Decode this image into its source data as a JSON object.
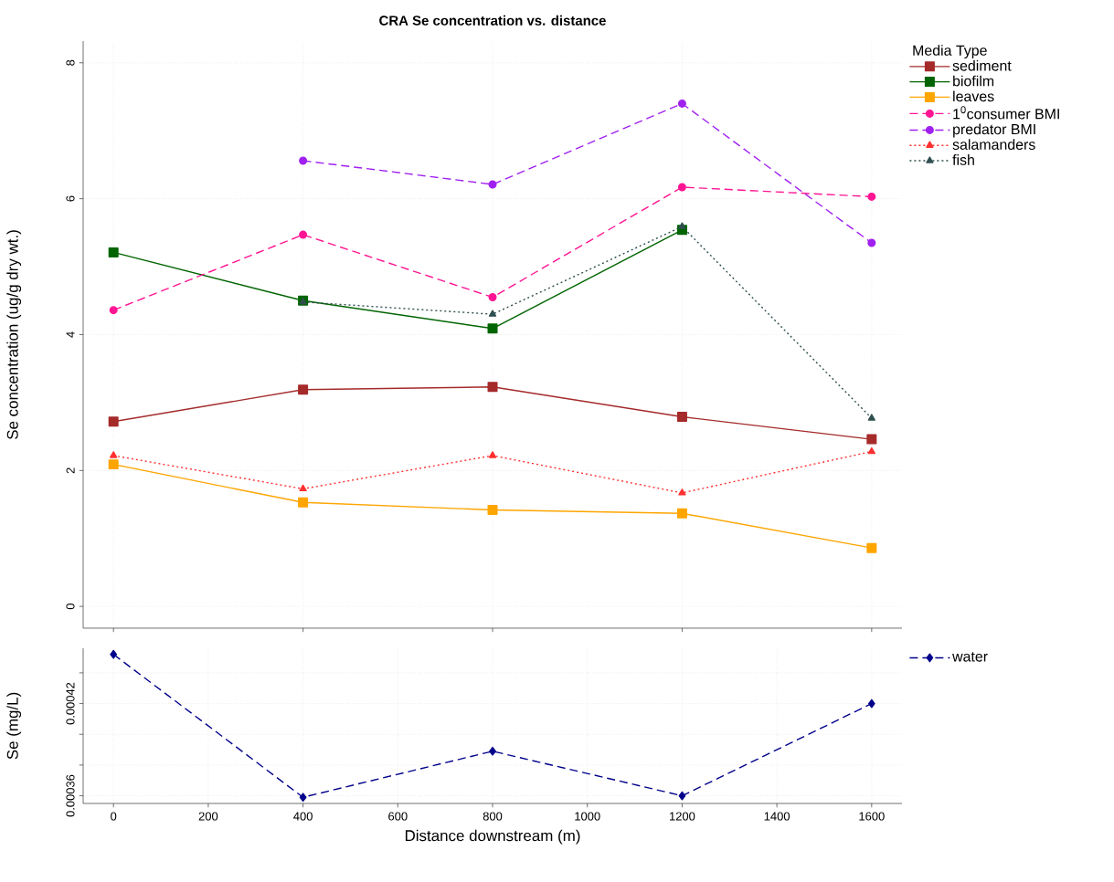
{
  "chart_data": [
    {
      "type": "line",
      "title": "CRA Se concentration vs. distance",
      "ylabel": "Se concentration (ug/g dry wt.)",
      "legend_title": "Media Type",
      "x": [
        0,
        400,
        800,
        1200,
        1600
      ],
      "xlim": [
        -64,
        1664
      ],
      "xticks": [
        {
          "value": 0,
          "label": null
        },
        {
          "value": 400,
          "label": null
        },
        {
          "value": 800,
          "label": null
        },
        {
          "value": 1200,
          "label": null
        },
        {
          "value": 1600,
          "label": null
        }
      ],
      "ylim": [
        -0.32,
        8.32
      ],
      "yticks": [
        0,
        2,
        4,
        6,
        8
      ],
      "grid": true,
      "legend": "right",
      "tick_labels": "y",
      "series": [
        {
          "name": "sediment",
          "color": "#a52a2a",
          "marker": "square",
          "line_style": "solid",
          "values": [
            2.72,
            3.19,
            3.23,
            2.79,
            2.46
          ]
        },
        {
          "name": "biofilm",
          "color": "#006400",
          "marker": "square",
          "line_style": "solid",
          "values": [
            5.21,
            4.5,
            4.09,
            5.54,
            null
          ]
        },
        {
          "name": "leaves",
          "color": "#ffa500",
          "marker": "square",
          "line_style": "solid",
          "values": [
            2.09,
            1.53,
            1.42,
            1.37,
            0.86
          ]
        },
        {
          "name": "1$^{0}$consumer BMI",
          "color": "#ff1493",
          "marker": "circle",
          "line_style": "dashed",
          "values": [
            4.36,
            5.47,
            4.55,
            6.17,
            6.03
          ]
        },
        {
          "name": "predator BMI",
          "color": "#a020f0",
          "marker": "circle",
          "line_style": "dashed",
          "values": [
            null,
            6.56,
            6.21,
            7.4,
            5.35
          ]
        },
        {
          "name": "salamanders",
          "color": "#ff3030",
          "marker": "triangle",
          "line_style": "dotted",
          "values": [
            2.22,
            1.73,
            2.22,
            1.67,
            2.28
          ]
        },
        {
          "name": "fish",
          "color": "#2f4f4f",
          "marker": "triangle",
          "line_style": "dotted",
          "values": [
            null,
            4.48,
            4.3,
            5.59,
            2.77
          ]
        }
      ]
    },
    {
      "type": "line",
      "xlabel": "Distance downstream (m)",
      "ylabel": "Se (mg/L)",
      "x": [
        0,
        400,
        800,
        1200,
        1600
      ],
      "xlim": [
        -64,
        1664
      ],
      "xticks": [
        0,
        200,
        400,
        600,
        800,
        1000,
        1200,
        1400,
        1600
      ],
      "ylim": [
        0.000355,
        0.000456
      ],
      "yticks": [
        {
          "value": 0.00036,
          "label": "0.00036"
        },
        {
          "value": 0.00038,
          "label": null
        },
        {
          "value": 0.0004,
          "label": null
        },
        {
          "value": 0.00042,
          "label": "0.00042"
        },
        {
          "value": 0.00044,
          "label": null
        }
      ],
      "grid": true,
      "legend": "right",
      "series": [
        {
          "name": "water",
          "color": "#00008b",
          "marker": "diamond",
          "line_style": "dashed",
          "values": [
            0.000452,
            0.000359,
            0.000389,
            0.00036,
            0.00042
          ]
        }
      ]
    }
  ]
}
